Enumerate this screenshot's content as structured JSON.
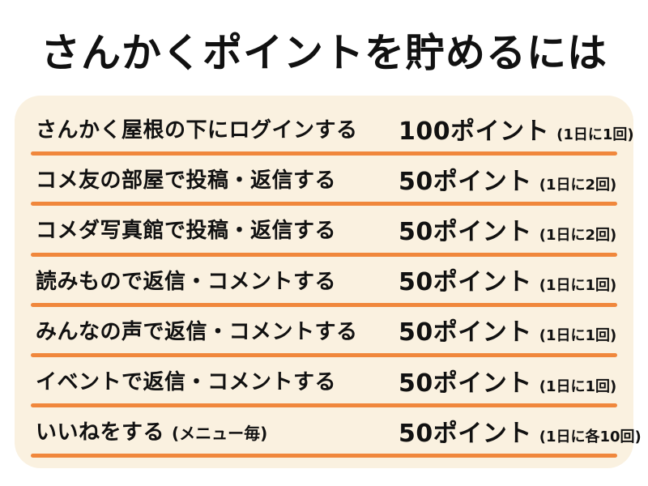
{
  "title": "さんかくポイントを貯めるには",
  "colors": {
    "accent_line": "#F0873C",
    "card_background": "#FAF1E0",
    "text": "#111111",
    "page_background": "#FFFFFF"
  },
  "rows": [
    {
      "action": "さんかく屋根の下にログインする",
      "action_note": "",
      "points": "100ポイント",
      "limit": "(1日に1回)"
    },
    {
      "action": "コメ友の部屋で投稿・返信する",
      "action_note": "",
      "points": "50ポイント",
      "limit": "(1日に2回)"
    },
    {
      "action": "コメダ写真館で投稿・返信する",
      "action_note": "",
      "points": "50ポイント",
      "limit": "(1日に2回)"
    },
    {
      "action": "読みもので返信・コメントする",
      "action_note": "",
      "points": "50ポイント",
      "limit": "(1日に1回)"
    },
    {
      "action": "みんなの声で返信・コメントする",
      "action_note": "",
      "points": "50ポイント",
      "limit": "(1日に1回)"
    },
    {
      "action": "イベントで返信・コメントする",
      "action_note": "",
      "points": "50ポイント",
      "limit": "(1日に1回)"
    },
    {
      "action": "いいねをする",
      "action_note": "(メニュー毎)",
      "points": "50ポイント",
      "limit": "(1日に各10回)"
    }
  ]
}
